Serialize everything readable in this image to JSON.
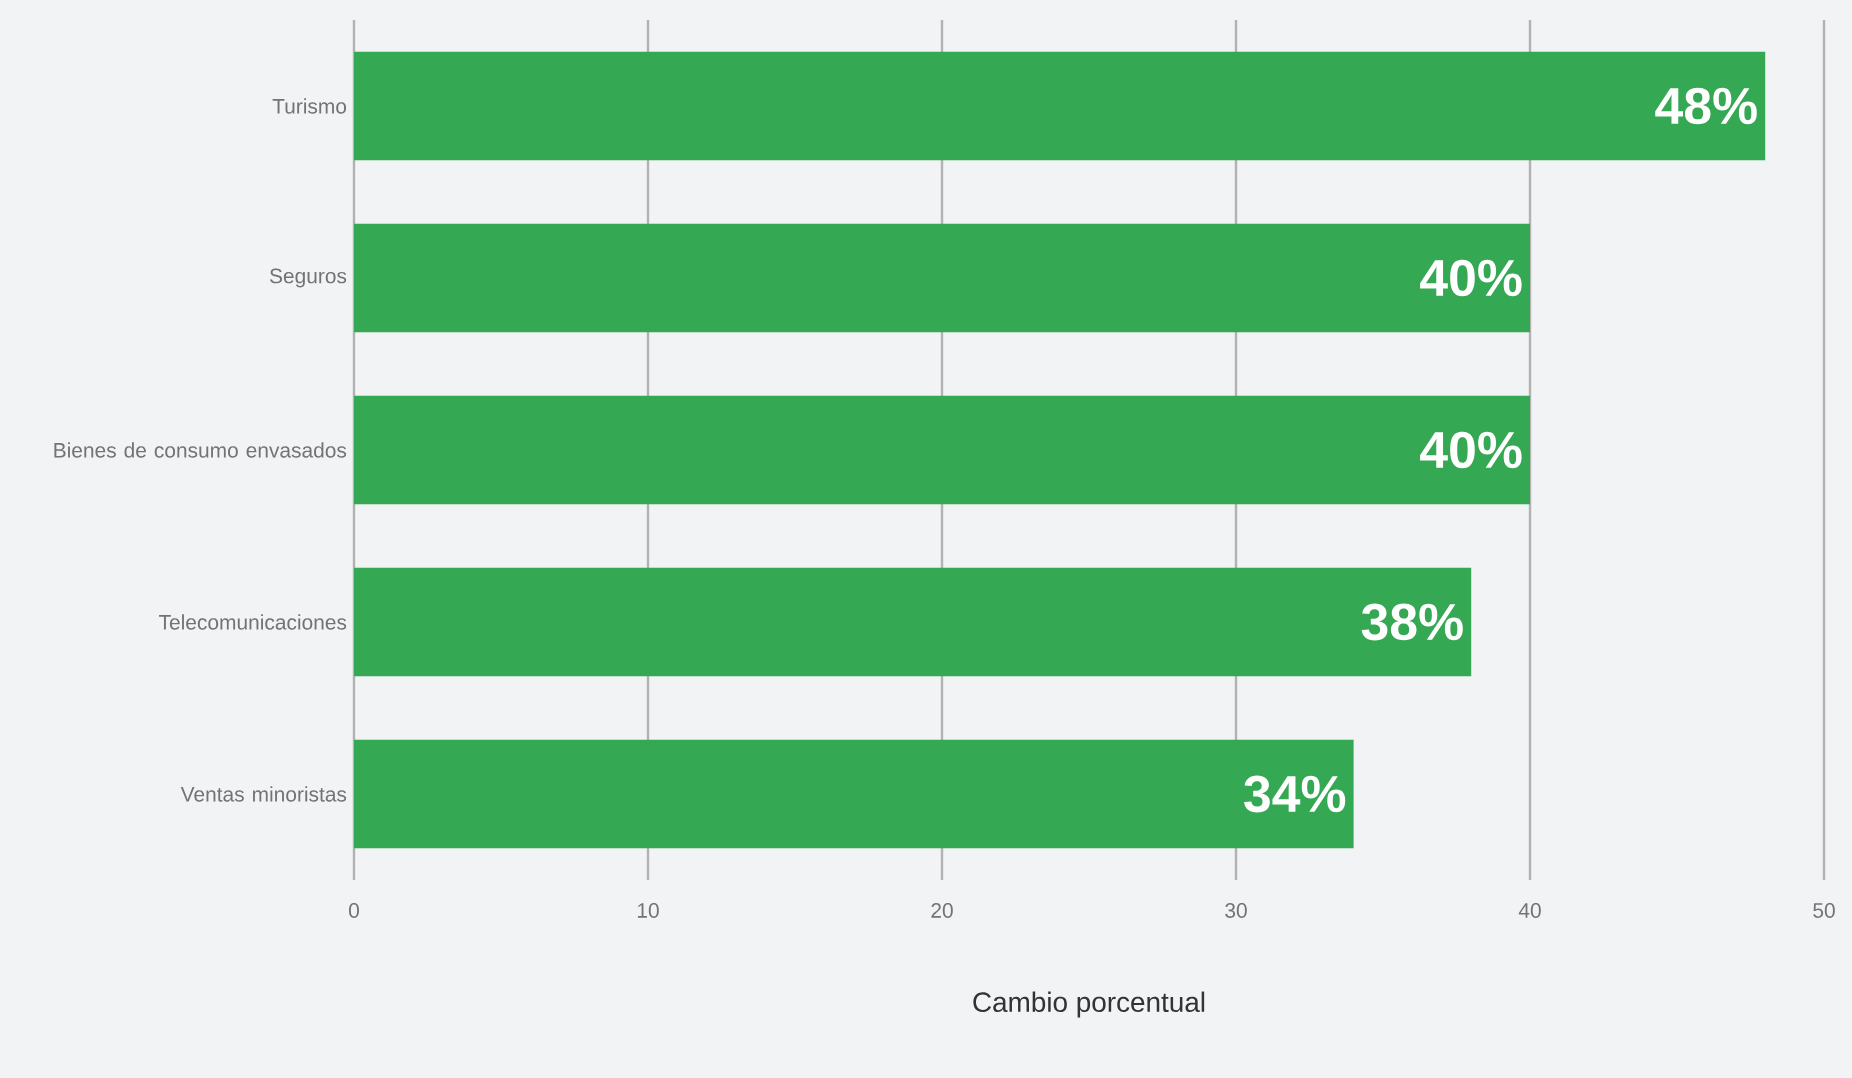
{
  "chart_data": {
    "type": "bar",
    "orientation": "horizontal",
    "xlabel": "Cambio porcentual",
    "categories": [
      "Turismo",
      "Seguros",
      "Bienes de consumo envasados",
      "Telecomunicaciones",
      "Ventas minoristas"
    ],
    "values": [
      48,
      40,
      40,
      38,
      34
    ],
    "value_labels": [
      "48%",
      "40%",
      "40%",
      "38%",
      "34%"
    ],
    "color": "#34a853",
    "xlim": [
      0,
      50
    ],
    "xticks": [
      0,
      10,
      20,
      30,
      40,
      50
    ],
    "grid": "x"
  }
}
